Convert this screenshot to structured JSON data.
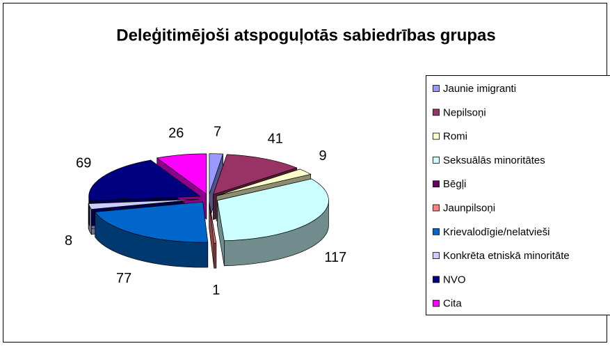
{
  "chart_data": {
    "type": "pie",
    "title": "Deleģitimējoši atspoguļotās sabiedrības grupas",
    "categories": [
      "Jaunie imigranti",
      "Nepilsoņi",
      "Romi",
      "Seksuālās minoritātes",
      "Bēgļi",
      "Jaunpilsoņi",
      "Krievalodīgie/nelatvieši",
      "Konkrēta etniskā minoritāte",
      "NVO",
      "Cita"
    ],
    "values": [
      7,
      41,
      9,
      117,
      0,
      1,
      77,
      8,
      69,
      26
    ],
    "value_labels": [
      "7",
      "41",
      "9",
      "117",
      null,
      "1",
      "77",
      "8",
      "69",
      "26"
    ],
    "colors": [
      "#9999ff",
      "#993366",
      "#ffffcc",
      "#ccffff",
      "#660066",
      "#ff8080",
      "#0066cc",
      "#ccccff",
      "#000080",
      "#ff00ff"
    ],
    "legend": "right"
  }
}
